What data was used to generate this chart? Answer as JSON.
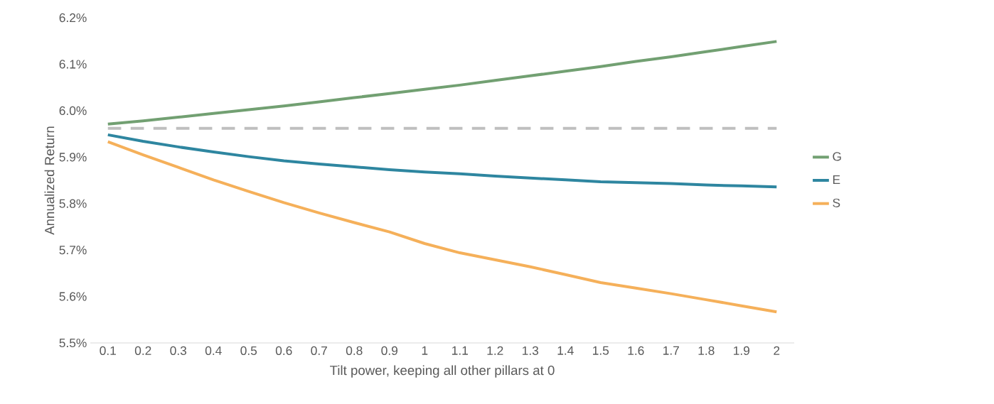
{
  "chart_data": {
    "type": "line",
    "xlabel": "Tilt power, keeping all other pillars at 0",
    "ylabel": "Annualized Return",
    "categories": [
      "0.1",
      "0.2",
      "0.3",
      "0.4",
      "0.5",
      "0.6",
      "0.7",
      "0.8",
      "0.9",
      "1",
      "1.1",
      "1.2",
      "1.3",
      "1.4",
      "1.5",
      "1.6",
      "1.7",
      "1.8",
      "1.9",
      "2"
    ],
    "ylim": [
      5.5,
      6.2
    ],
    "yticks": [
      {
        "value": 5.5,
        "label": "5.5%"
      },
      {
        "value": 5.6,
        "label": "5.6%"
      },
      {
        "value": 5.7,
        "label": "5.7%"
      },
      {
        "value": 5.8,
        "label": "5.8%"
      },
      {
        "value": 5.9,
        "label": "5.9%"
      },
      {
        "value": 6.0,
        "label": "6.0%"
      },
      {
        "value": 6.1,
        "label": "6.1%"
      },
      {
        "value": 6.2,
        "label": "6.2%"
      }
    ],
    "legend": "right",
    "grid": false,
    "marker": "none",
    "series": [
      {
        "name": "G",
        "color": "#72a072",
        "line_style": "solid",
        "values": [
          5.971,
          5.978,
          5.986,
          5.994,
          6.002,
          6.01,
          6.019,
          6.028,
          6.037,
          6.046,
          6.055,
          6.065,
          6.075,
          6.085,
          6.095,
          6.106,
          6.116,
          6.127,
          6.138,
          6.149
        ]
      },
      {
        "color": "#bfbfbf",
        "line_style": "dashed",
        "values": [
          5.962,
          5.962,
          5.962,
          5.962,
          5.962,
          5.962,
          5.962,
          5.962,
          5.962,
          5.962,
          5.962,
          5.962,
          5.962,
          5.962,
          5.962,
          5.962,
          5.962,
          5.962,
          5.962,
          5.962
        ]
      },
      {
        "name": "E",
        "color": "#2e86a0",
        "line_style": "solid",
        "values": [
          5.948,
          5.934,
          5.922,
          5.911,
          5.901,
          5.892,
          5.885,
          5.879,
          5.873,
          5.868,
          5.864,
          5.859,
          5.855,
          5.851,
          5.847,
          5.845,
          5.843,
          5.84,
          5.838,
          5.836
        ]
      },
      {
        "name": "S",
        "color": "#f5b05a",
        "line_style": "solid",
        "values": [
          5.933,
          5.905,
          5.878,
          5.851,
          5.826,
          5.802,
          5.78,
          5.759,
          5.739,
          5.714,
          5.694,
          5.679,
          5.664,
          5.647,
          5.63,
          5.618,
          5.606,
          5.593,
          5.58,
          5.567
        ]
      }
    ]
  }
}
